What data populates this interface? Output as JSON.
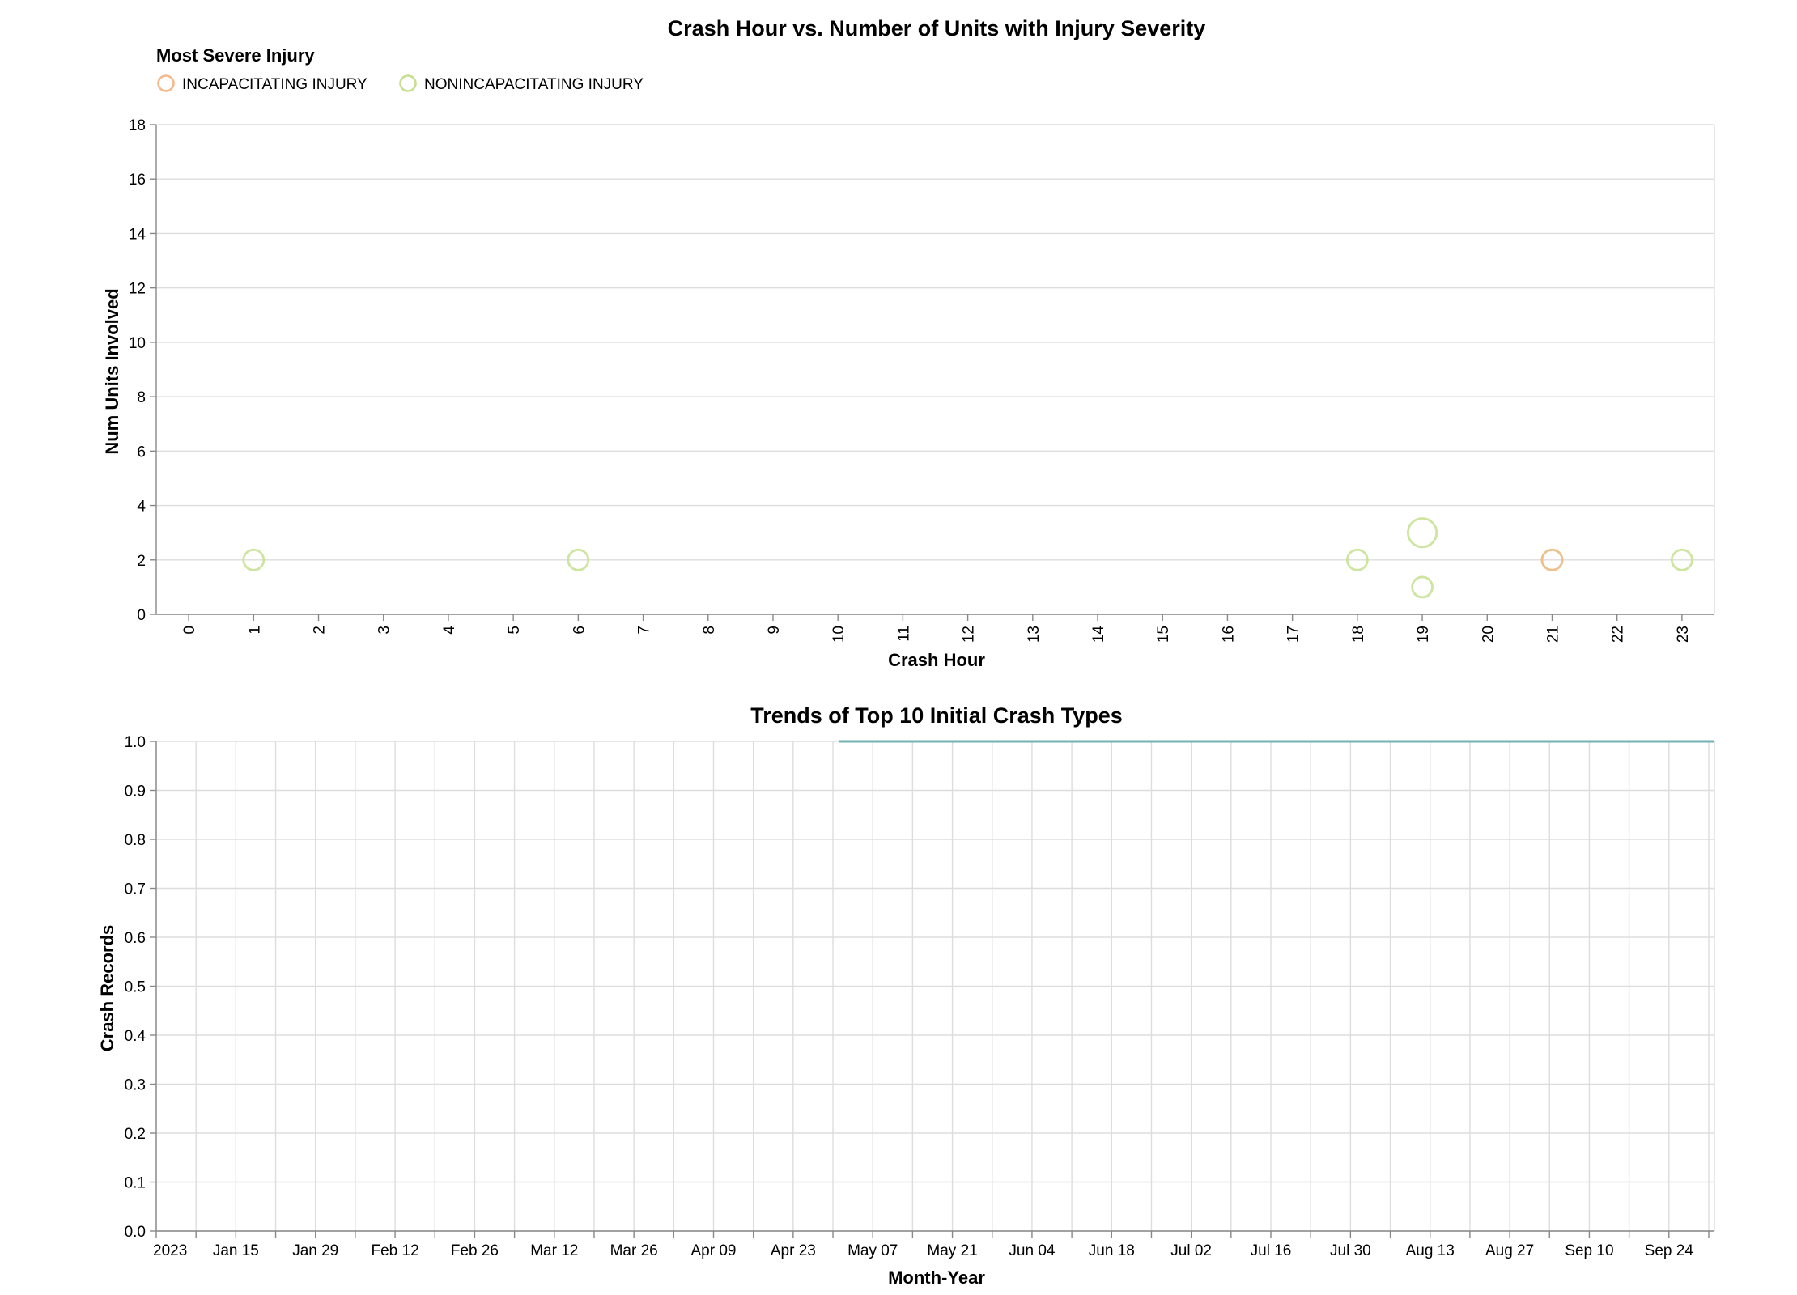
{
  "chart_data": [
    {
      "type": "scatter",
      "title": "Crash Hour vs. Number of Units with Injury Severity",
      "xlabel": "Crash Hour",
      "ylabel": "Num Units Involved",
      "x_ticks": [
        0,
        1,
        2,
        3,
        4,
        5,
        6,
        7,
        8,
        9,
        10,
        11,
        12,
        13,
        14,
        15,
        16,
        17,
        18,
        19,
        20,
        21,
        22,
        23
      ],
      "y_ticks": [
        0,
        2,
        4,
        6,
        8,
        10,
        12,
        14,
        16,
        18
      ],
      "ylim": [
        0,
        18
      ],
      "grid": true,
      "legend": {
        "title": "Most Severe Injury",
        "placement": "top-left",
        "entries": [
          {
            "label": "INCAPACITATING INJURY",
            "color": "#f5b98a"
          },
          {
            "label": "NONINCAPACITATING INJURY",
            "color": "#c6e090"
          }
        ]
      },
      "points": [
        {
          "x": 1,
          "y": 2,
          "count": 1,
          "series": "NONINCAPACITATING INJURY"
        },
        {
          "x": 6,
          "y": 2,
          "count": 1,
          "series": "NONINCAPACITATING INJURY"
        },
        {
          "x": 18,
          "y": 2,
          "count": 1,
          "series": "NONINCAPACITATING INJURY"
        },
        {
          "x": 19,
          "y": 3,
          "count": 2,
          "series": "NONINCAPACITATING INJURY"
        },
        {
          "x": 19,
          "y": 1,
          "count": 1,
          "series": "NONINCAPACITATING INJURY"
        },
        {
          "x": 21,
          "y": 2,
          "count": 1,
          "series": "NONINCAPACITATING INJURY"
        },
        {
          "x": 21,
          "y": 2,
          "count": 1,
          "series": "INCAPACITATING INJURY"
        },
        {
          "x": 23,
          "y": 2,
          "count": 1,
          "series": "NONINCAPACITATING INJURY"
        }
      ]
    },
    {
      "type": "line",
      "title": "Trends of Top 10 Initial Crash Types",
      "xlabel": "Month-Year",
      "ylabel": "Crash Records",
      "x_ticks": [
        "2023",
        "Jan 15",
        "Jan 29",
        "Feb 12",
        "Feb 26",
        "Mar 12",
        "Mar 26",
        "Apr 09",
        "Apr 23",
        "May 07",
        "May 21",
        "Jun 04",
        "Jun 18",
        "Jul 02",
        "Jul 16",
        "Jul 30",
        "Aug 13",
        "Aug 27",
        "Sep 10",
        "Sep 24"
      ],
      "x_tick_dates": [
        "2023-01-01",
        "2023-01-15",
        "2023-01-29",
        "2023-02-12",
        "2023-02-26",
        "2023-03-12",
        "2023-03-26",
        "2023-04-09",
        "2023-04-23",
        "2023-05-07",
        "2023-05-21",
        "2023-06-04",
        "2023-06-18",
        "2023-07-02",
        "2023-07-16",
        "2023-07-30",
        "2023-08-13",
        "2023-08-27",
        "2023-09-10",
        "2023-09-24"
      ],
      "x_range": [
        "2023-01-01",
        "2023-10-02"
      ],
      "y_ticks": [
        "0.0",
        "0.1",
        "0.2",
        "0.3",
        "0.4",
        "0.5",
        "0.6",
        "0.7",
        "0.8",
        "0.9",
        "1.0"
      ],
      "ylim": [
        0,
        1
      ],
      "grid": true,
      "series": [
        {
          "color": "#72b3b3",
          "points": [
            {
              "x": "2023-05-01",
              "y": 1
            },
            {
              "x": "2023-10-02",
              "y": 1
            }
          ]
        }
      ]
    }
  ]
}
